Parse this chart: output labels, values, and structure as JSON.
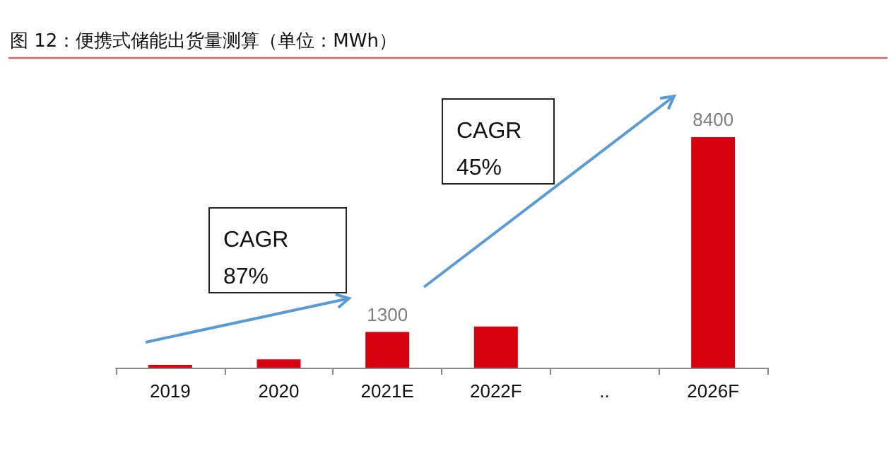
{
  "chart_data": {
    "type": "bar",
    "title": "图 12：便携式储能出货量测算（单位：MWh）",
    "categories": [
      "2019",
      "2020",
      "2021E",
      "2022F",
      "..",
      "2026F"
    ],
    "values": [
      100,
      300,
      1300,
      1500,
      null,
      8400
    ],
    "value_labels": [
      null,
      null,
      "1300",
      null,
      null,
      "8400"
    ],
    "color": "#d7000f",
    "tick_labels": "x",
    "annotations": [
      "CAGR\n87%",
      "CAGR\n45%"
    ]
  }
}
